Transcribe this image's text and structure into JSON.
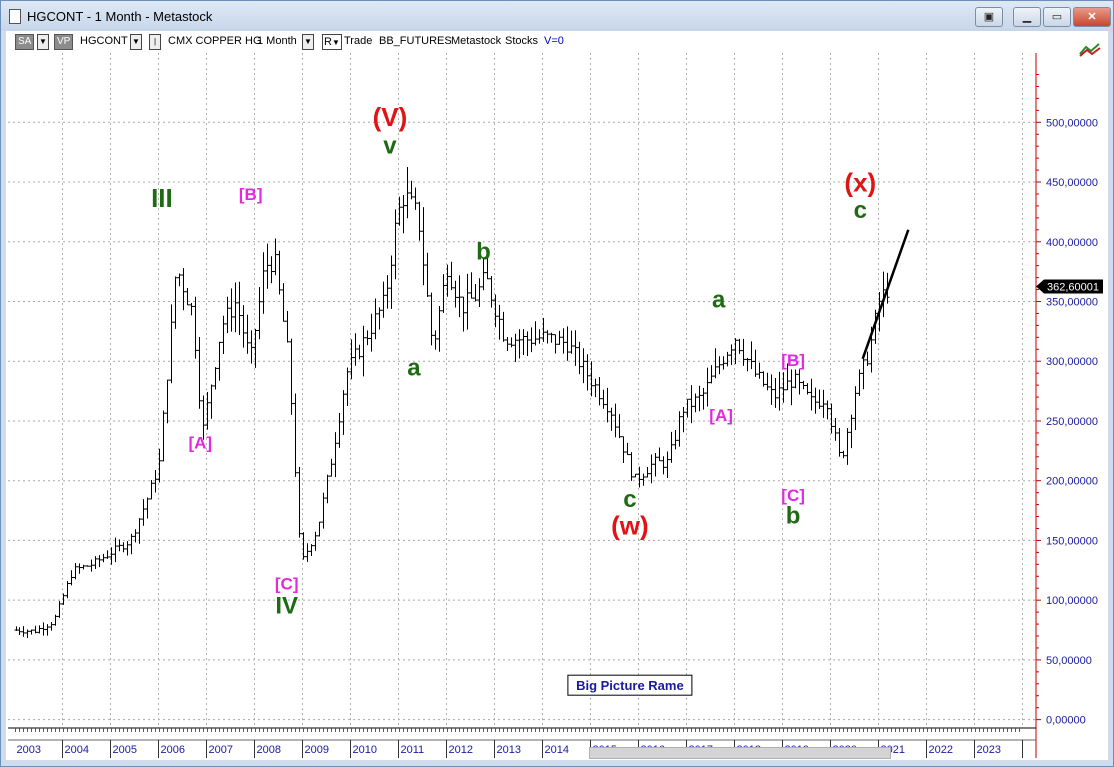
{
  "window": {
    "title": "HGCONT - 1 Month - Metastock",
    "buttons": [
      "restore",
      "minimize",
      "maximize",
      "close"
    ]
  },
  "toolbar": {
    "sa": "SA",
    "vp": "VP",
    "symbol": "HGCONT",
    "name": "CMX COPPER HG",
    "period": "1 Month",
    "r": "R",
    "trade": "Trade",
    "exchange": "BB_FUTURES",
    "source": "Metastock",
    "kind": "Stocks",
    "v": "V=0"
  },
  "chart_data": {
    "type": "ohlc",
    "symbol": "HGCONT",
    "ylim": [
      -10,
      560
    ],
    "y_ticks": [
      "0,00000",
      "50,00000",
      "100,00000",
      "150,00000",
      "200,00000",
      "250,00000",
      "300,00000",
      "350,00000",
      "400,00000",
      "450,00000",
      "500,00000"
    ],
    "x_ticks": [
      "2003",
      "2004",
      "2005",
      "2006",
      "2007",
      "2008",
      "2009",
      "2010",
      "2011",
      "2012",
      "2013",
      "2014",
      "2015",
      "2016",
      "2017",
      "2018",
      "2019",
      "2020",
      "2021",
      "2022",
      "2023"
    ],
    "last_price_label": "362,60001",
    "last_price": 362.6,
    "grid": true,
    "price_path": [
      [
        2003.0,
        75
      ],
      [
        2003.4,
        74
      ],
      [
        2003.8,
        82
      ],
      [
        2004.2,
        125
      ],
      [
        2004.6,
        130
      ],
      [
        2005.0,
        140
      ],
      [
        2005.4,
        150
      ],
      [
        2005.8,
        190
      ],
      [
        2006.0,
        215
      ],
      [
        2006.3,
        350
      ],
      [
        2006.35,
        380
      ],
      [
        2006.7,
        340
      ],
      [
        2006.9,
        240
      ],
      [
        2007.3,
        330
      ],
      [
        2007.6,
        350
      ],
      [
        2007.9,
        300
      ],
      [
        2008.2,
        380
      ],
      [
        2008.4,
        385
      ],
      [
        2008.7,
        300
      ],
      [
        2008.95,
        130
      ],
      [
        2009.3,
        160
      ],
      [
        2009.6,
        220
      ],
      [
        2009.9,
        290
      ],
      [
        2010.3,
        320
      ],
      [
        2010.7,
        350
      ],
      [
        2010.95,
        420
      ],
      [
        2011.1,
        440
      ],
      [
        2011.4,
        420
      ],
      [
        2011.7,
        310
      ],
      [
        2012.0,
        380
      ],
      [
        2012.3,
        345
      ],
      [
        2012.6,
        355
      ],
      [
        2012.8,
        370
      ],
      [
        2013.2,
        320
      ],
      [
        2013.6,
        318
      ],
      [
        2014.0,
        320
      ],
      [
        2014.5,
        315
      ],
      [
        2014.9,
        290
      ],
      [
        2015.4,
        260
      ],
      [
        2015.9,
        200
      ],
      [
        2016.3,
        215
      ],
      [
        2016.6,
        215
      ],
      [
        2016.9,
        260
      ],
      [
        2017.3,
        270
      ],
      [
        2017.7,
        300
      ],
      [
        2018.0,
        320
      ],
      [
        2018.4,
        290
      ],
      [
        2018.8,
        270
      ],
      [
        2019.2,
        285
      ],
      [
        2019.6,
        265
      ],
      [
        2019.9,
        270
      ],
      [
        2020.0,
        250
      ],
      [
        2020.2,
        215
      ],
      [
        2020.5,
        275
      ],
      [
        2020.8,
        310
      ],
      [
        2021.0,
        350
      ],
      [
        2021.2,
        362.6
      ]
    ],
    "trend_line": {
      "from": [
        2020.65,
        302
      ],
      "to": [
        2021.6,
        410
      ]
    },
    "annotations": [
      {
        "text": "III",
        "color": "#1e6b14",
        "x": 2006.05,
        "y": 429,
        "size": 26
      },
      {
        "text": "[A]",
        "color": "#e029e0",
        "x": 2006.85,
        "y": 227,
        "size": 17
      },
      {
        "text": "[B]",
        "color": "#e029e0",
        "x": 2007.9,
        "y": 435,
        "size": 17
      },
      {
        "text": "[C]",
        "color": "#e029e0",
        "x": 2008.65,
        "y": 109,
        "size": 17
      },
      {
        "text": "IV",
        "color": "#1e6b14",
        "x": 2008.65,
        "y": 89,
        "size": 24
      },
      {
        "text": "(V)",
        "color": "#e01414",
        "x": 2010.8,
        "y": 497,
        "size": 26
      },
      {
        "text": "v",
        "color": "#1e6b14",
        "x": 2010.8,
        "y": 474,
        "size": 24
      },
      {
        "text": "a",
        "color": "#1e6b14",
        "x": 2011.3,
        "y": 288,
        "size": 24
      },
      {
        "text": "b",
        "color": "#1e6b14",
        "x": 2012.75,
        "y": 385,
        "size": 24
      },
      {
        "text": "c",
        "color": "#1e6b14",
        "x": 2015.8,
        "y": 178,
        "size": 24
      },
      {
        "text": "(w)",
        "color": "#e01414",
        "x": 2015.8,
        "y": 155,
        "size": 26
      },
      {
        "text": "a",
        "color": "#1e6b14",
        "x": 2017.65,
        "y": 345,
        "size": 24
      },
      {
        "text": "[A]",
        "color": "#e029e0",
        "x": 2017.7,
        "y": 250,
        "size": 17
      },
      {
        "text": "[B]",
        "color": "#e029e0",
        "x": 2019.2,
        "y": 296,
        "size": 17
      },
      {
        "text": "[C]",
        "color": "#e029e0",
        "x": 2019.2,
        "y": 183,
        "size": 17
      },
      {
        "text": "b",
        "color": "#1e6b14",
        "x": 2019.2,
        "y": 164,
        "size": 24
      },
      {
        "text": "(x)",
        "color": "#e01414",
        "x": 2020.6,
        "y": 442,
        "size": 26
      },
      {
        "text": "c",
        "color": "#1e6b14",
        "x": 2020.6,
        "y": 420,
        "size": 24
      }
    ],
    "text_box": {
      "text": "Big Picture Rame",
      "x": 2015.8,
      "y": 28
    }
  }
}
